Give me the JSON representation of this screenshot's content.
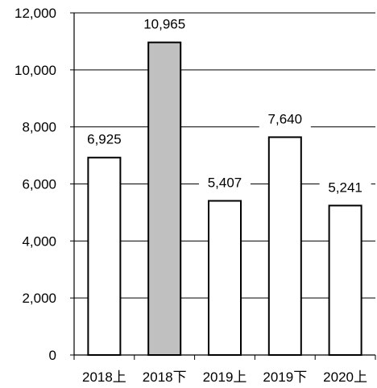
{
  "chart_data": {
    "type": "bar",
    "title": "",
    "xlabel": "",
    "ylabel": "",
    "categories": [
      "2018上",
      "2018下",
      "2019上",
      "2019下",
      "2020上"
    ],
    "values": [
      6925,
      10965,
      5407,
      7640,
      5241
    ],
    "value_labels": [
      "6,925",
      "10,965",
      "5,407",
      "7,640",
      "5,241"
    ],
    "highlight_index": 1,
    "ylim": [
      0,
      12000
    ],
    "yticks": [
      0,
      2000,
      4000,
      6000,
      8000,
      10000,
      12000
    ],
    "ytick_labels": [
      "0",
      "2,000",
      "4,000",
      "6,000",
      "8,000",
      "10,000",
      "12,000"
    ],
    "grid": true,
    "colors": {
      "bar_fill": "#ffffff",
      "bar_highlight_fill": "#c0c0c0",
      "bar_stroke": "#000000",
      "grid": "#000000"
    }
  }
}
